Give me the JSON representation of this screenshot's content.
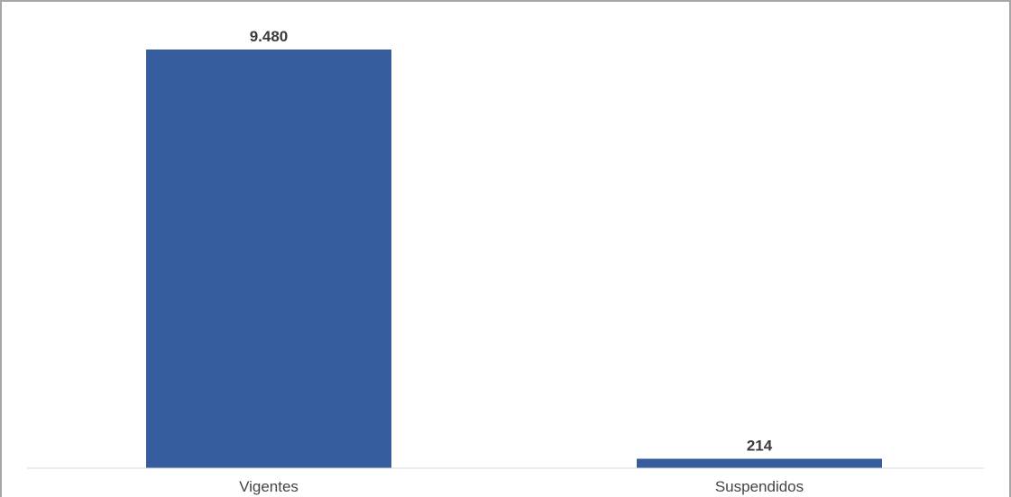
{
  "chart_data": {
    "type": "bar",
    "categories": [
      "Vigentes",
      "Suspendidos"
    ],
    "values": [
      9480,
      214
    ],
    "value_labels": [
      "9.480",
      "214"
    ],
    "title": "",
    "xlabel": "",
    "ylabel": "",
    "ylim": [
      0,
      9480
    ],
    "grid": false,
    "legend": "none",
    "bar_color": "#365e9f"
  }
}
